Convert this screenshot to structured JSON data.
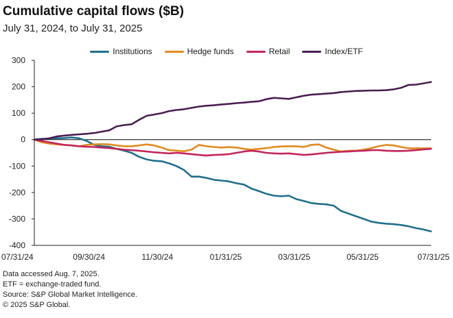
{
  "chart_data": {
    "type": "line",
    "title": "Cumulative capital flows ($B)",
    "subtitle": "July 31, 2024, to July 31, 2025",
    "xlabel": "",
    "ylabel": "",
    "ylim": [
      -400,
      300
    ],
    "yticks": [
      300,
      200,
      100,
      0,
      -100,
      -200,
      -300,
      -400
    ],
    "xticks": [
      "07/31/24",
      "09/30/24",
      "11/30/24",
      "01/31/25",
      "03/31/25",
      "05/31/25",
      "07/31/25"
    ],
    "colors": {
      "Institutions": "#1f6f8b",
      "Hedge funds": "#e08a1e",
      "Retail": "#c2255c",
      "Index/ETF": "#4b1d52",
      "zero": "#000000",
      "axis": "#222222"
    },
    "series": [
      {
        "name": "Institutions",
        "values": [
          0,
          3,
          4,
          5,
          6,
          8,
          5,
          -5,
          -20,
          -25,
          -27,
          -35,
          -42,
          -50,
          -65,
          -75,
          -80,
          -82,
          -90,
          -100,
          -115,
          -140,
          -140,
          -145,
          -152,
          -155,
          -158,
          -165,
          -170,
          -185,
          -195,
          -205,
          -212,
          -214,
          -212,
          -225,
          -232,
          -240,
          -243,
          -245,
          -250,
          -270,
          -280,
          -290,
          -300,
          -310,
          -315,
          -318,
          -320,
          -323,
          -328,
          -335,
          -340,
          -347
        ]
      },
      {
        "name": "Hedge funds",
        "values": [
          0,
          -10,
          -15,
          -18,
          -20,
          -22,
          -25,
          -20,
          -18,
          -17,
          -18,
          -22,
          -25,
          -25,
          -22,
          -18,
          -22,
          -30,
          -40,
          -42,
          -44,
          -38,
          -20,
          -25,
          -28,
          -30,
          -28,
          -30,
          -35,
          -38,
          -35,
          -32,
          -28,
          -26,
          -25,
          -25,
          -28,
          -20,
          -18,
          -30,
          -38,
          -45,
          -42,
          -42,
          -38,
          -32,
          -25,
          -20,
          -22,
          -28,
          -33,
          -33,
          -33,
          -33
        ]
      },
      {
        "name": "Retail",
        "values": [
          0,
          -5,
          -10,
          -15,
          -20,
          -22,
          -25,
          -27,
          -28,
          -30,
          -32,
          -35,
          -38,
          -40,
          -42,
          -45,
          -48,
          -50,
          -52,
          -50,
          -52,
          -55,
          -58,
          -60,
          -58,
          -57,
          -55,
          -50,
          -45,
          -42,
          -45,
          -50,
          -52,
          -53,
          -52,
          -55,
          -58,
          -56,
          -53,
          -50,
          -48,
          -46,
          -45,
          -43,
          -42,
          -40,
          -40,
          -42,
          -43,
          -43,
          -42,
          -40,
          -37,
          -35
        ]
      },
      {
        "name": "Index/ETF",
        "values": [
          0,
          1,
          5,
          12,
          15,
          18,
          20,
          22,
          25,
          30,
          35,
          50,
          55,
          58,
          75,
          90,
          95,
          100,
          108,
          112,
          115,
          120,
          125,
          128,
          130,
          133,
          135,
          138,
          140,
          143,
          145,
          153,
          158,
          156,
          154,
          160,
          166,
          170,
          172,
          174,
          176,
          180,
          182,
          184,
          185,
          186,
          186,
          187,
          190,
          196,
          207,
          208,
          213,
          218
        ]
      }
    ]
  },
  "notes": {
    "accessed": "Data accessed Aug. 7, 2025.",
    "etf": "ETF = exchange-traded fund.",
    "source": "Source: S&P Global Market Intelligence.",
    "copyright": "© 2025 S&P Global."
  }
}
